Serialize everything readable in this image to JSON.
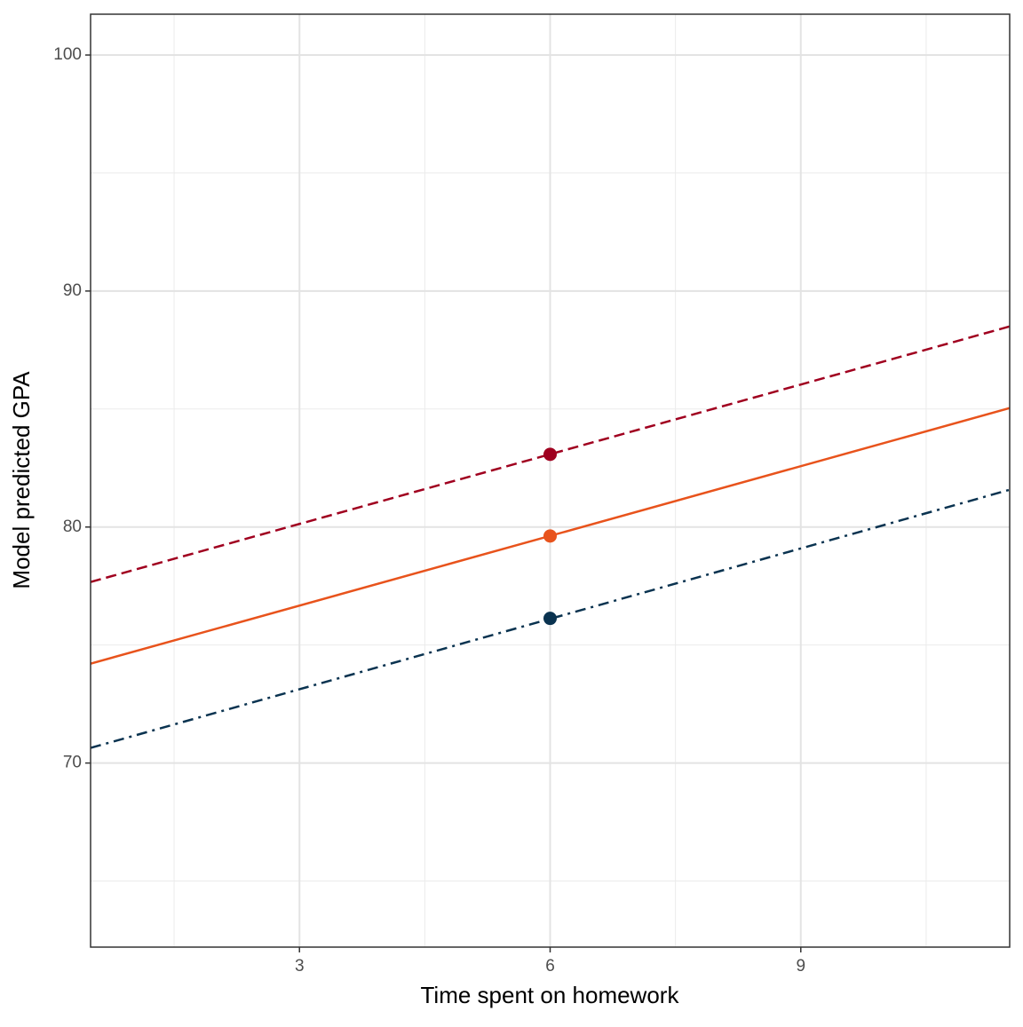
{
  "chart_data": {
    "type": "line",
    "x_label": "Time spent on homework",
    "y_label": "Model predicted GPA",
    "x": [
      0.5,
      11.5
    ],
    "point_x": 6,
    "series": [
      {
        "color": "#a0001f",
        "dash": "dashed",
        "values": [
          77.67,
          88.5
        ],
        "point": 83.08
      },
      {
        "color": "#e8531c",
        "dash": "solid",
        "values": [
          74.21,
          85.04
        ],
        "point": 79.62
      },
      {
        "color": "#0a3350",
        "dash": "dashdot",
        "values": [
          70.64,
          81.58
        ],
        "point": 76.13
      }
    ],
    "xlim": [
      0.5,
      11.5
    ],
    "xticks": [
      3,
      6,
      9
    ],
    "minor_xticks": [
      1.5,
      4.5,
      7.5,
      10.5
    ],
    "ylim": [
      62.2,
      101.73
    ],
    "yticks": [
      70,
      80,
      90,
      100
    ],
    "minor_yticks": [
      65,
      75,
      85,
      95
    ],
    "grid": true
  }
}
